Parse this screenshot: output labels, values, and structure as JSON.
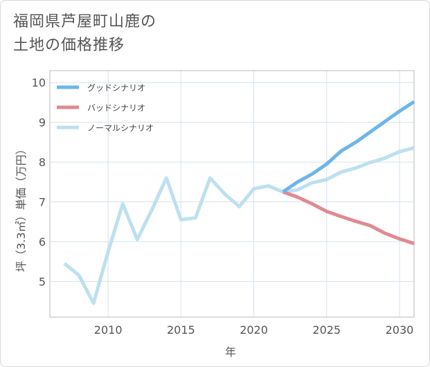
{
  "title": {
    "line1": "福岡県芦屋町山鹿の",
    "line2": "土地の価格推移"
  },
  "chart_data": {
    "type": "line",
    "title": "福岡県芦屋町山鹿の土地の価格推移",
    "xlabel": "年",
    "ylabel": "坪（3.3㎡）単価（万円）",
    "xlim": [
      2006,
      2031
    ],
    "ylim": [
      4.1,
      10.3
    ],
    "xticks": [
      2010,
      2015,
      2020,
      2025,
      2030
    ],
    "yticks": [
      5,
      6,
      7,
      8,
      9,
      10
    ],
    "grid": true,
    "legend_position": "top-left",
    "series": [
      {
        "name": "グッドシナリオ",
        "color": "#6cb6ea",
        "x": [
          2022,
          2023,
          2024,
          2025,
          2026,
          2027,
          2028,
          2029,
          2030,
          2031
        ],
        "values": [
          7.25,
          7.5,
          7.7,
          7.95,
          8.28,
          8.5,
          8.76,
          9.02,
          9.28,
          9.52
        ]
      },
      {
        "name": "バッドシナリオ",
        "color": "#e08a90",
        "x": [
          2022,
          2023,
          2024,
          2025,
          2026,
          2027,
          2028,
          2029,
          2030,
          2031
        ],
        "values": [
          7.25,
          7.12,
          6.95,
          6.76,
          6.63,
          6.51,
          6.4,
          6.21,
          6.07,
          5.95
        ]
      },
      {
        "name": "ノーマルシナリオ",
        "color": "#bde0ef",
        "x": [
          2007,
          2008,
          2009,
          2010,
          2011,
          2012,
          2013,
          2014,
          2015,
          2016,
          2017,
          2018,
          2019,
          2020,
          2021,
          2022,
          2023,
          2024,
          2025,
          2026,
          2027,
          2028,
          2029,
          2030,
          2031
        ],
        "values": [
          5.45,
          5.15,
          4.45,
          5.75,
          6.95,
          6.05,
          6.8,
          7.6,
          6.55,
          6.6,
          7.6,
          7.2,
          6.88,
          7.33,
          7.4,
          7.25,
          7.3,
          7.48,
          7.56,
          7.75,
          7.85,
          7.99,
          8.1,
          8.26,
          8.36
        ]
      }
    ]
  }
}
